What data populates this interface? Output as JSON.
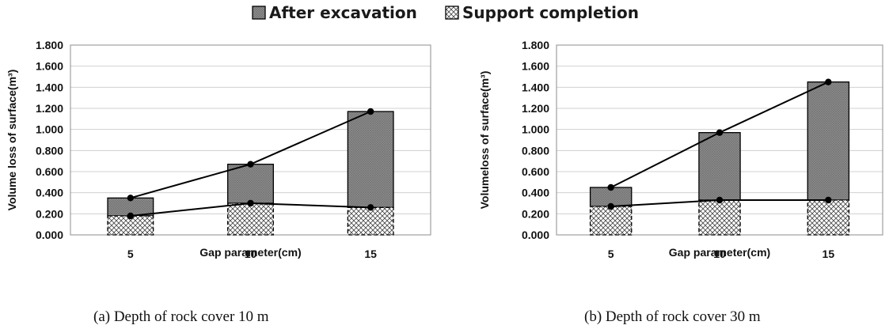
{
  "legend": {
    "items": [
      {
        "label": "After excavation",
        "pattern": "dense-crosshatch"
      },
      {
        "label": "Support completion",
        "pattern": "open-crosshatch"
      }
    ]
  },
  "chart_data": [
    {
      "type": "bar",
      "stacked": true,
      "categories": [
        "5",
        "10",
        "15"
      ],
      "series": [
        {
          "name": "Support completion",
          "values": [
            0.18,
            0.3,
            0.26
          ],
          "color": "#ffffff"
        },
        {
          "name": "After excavation",
          "values": [
            0.35,
            0.67,
            1.17
          ],
          "color": "#8c8c8c"
        }
      ],
      "ylabel": "Volume loss of surface(m³)",
      "xlabel": "Gap parameter(cm)",
      "ylim": [
        0,
        1.8
      ],
      "yticks": [
        "0.000",
        "0.200",
        "0.400",
        "0.600",
        "0.800",
        "1.000",
        "1.200",
        "1.400",
        "1.600",
        "1.800"
      ],
      "grid": true,
      "caption": "(a) Depth of rock cover 10 m"
    },
    {
      "type": "bar",
      "stacked": true,
      "categories": [
        "5",
        "10",
        "15"
      ],
      "series": [
        {
          "name": "Support completion",
          "values": [
            0.27,
            0.33,
            0.33
          ],
          "color": "#ffffff"
        },
        {
          "name": "After excavation",
          "values": [
            0.45,
            0.97,
            1.45
          ],
          "color": "#8c8c8c"
        }
      ],
      "ylabel": "Volumeloss of surface(m³)",
      "xlabel": "Gap parameter(cm)",
      "ylim": [
        0,
        1.8
      ],
      "yticks": [
        "0.000",
        "0.200",
        "0.400",
        "0.600",
        "0.800",
        "1.000",
        "1.200",
        "1.400",
        "1.600",
        "1.800"
      ],
      "grid": true,
      "caption": "(b)  Depth of rock cover 30 m"
    }
  ]
}
